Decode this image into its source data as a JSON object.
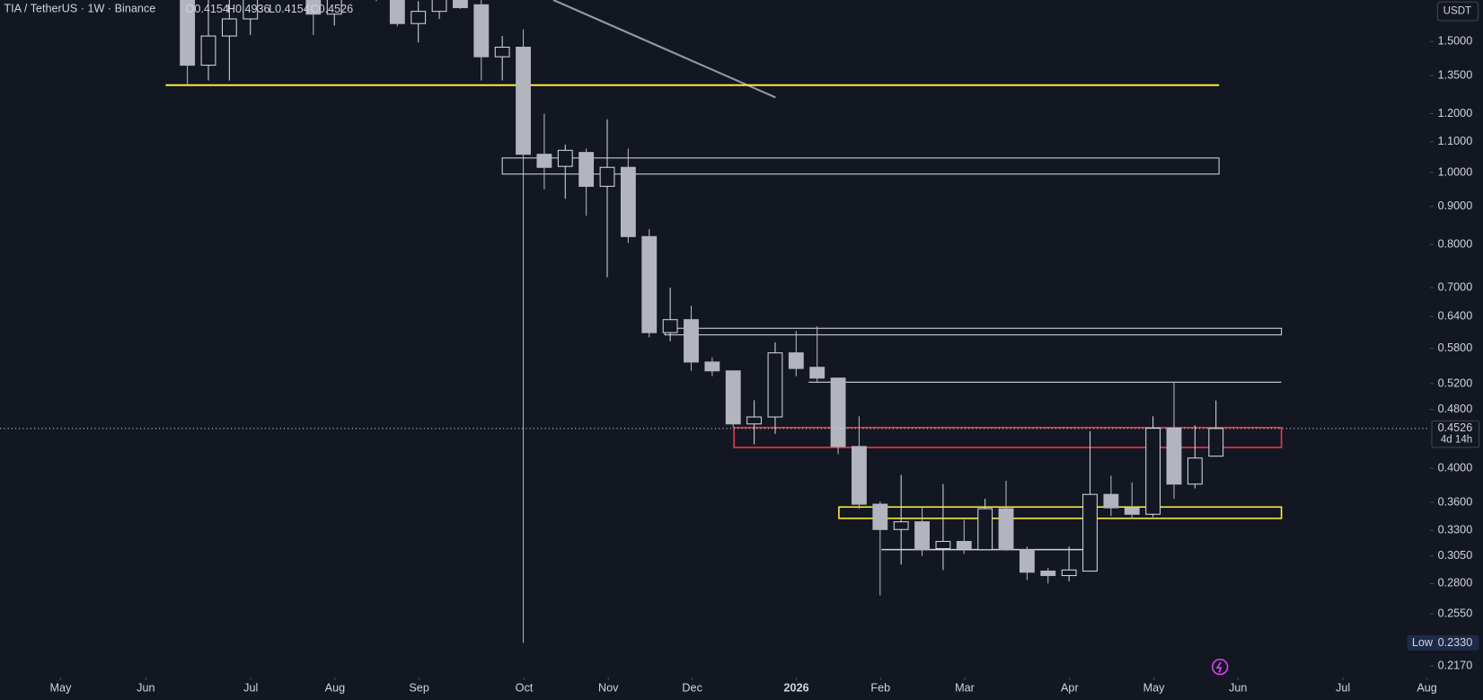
{
  "chart_data": {
    "type": "candlestick",
    "title": "TIA / TetherUS · 1W · Binance",
    "ohlc_labels": [
      "O0.4154",
      "H0.4936",
      "L0.4154",
      "C0.4526"
    ],
    "currency": "USDT",
    "last_price_label": "0.4526",
    "countdown": "4d 14h",
    "low_label": "Low",
    "low_value_label": "0.2330",
    "up_color": "#d1d4dc",
    "down_color": "#b2b5be",
    "log_scale": true,
    "categories": [
      null,
      null,
      null,
      null,
      null,
      null,
      null,
      null,
      null,
      null,
      null,
      null,
      null,
      null,
      null,
      null,
      null,
      null,
      null,
      null,
      null,
      null,
      null,
      null,
      null,
      null,
      null,
      null,
      null,
      null,
      null,
      null,
      null,
      null,
      null,
      null,
      null,
      null,
      null,
      null,
      null,
      null,
      null,
      null,
      null,
      null,
      null,
      null,
      null,
      null
    ],
    "open": [
      1.81,
      1.394,
      1.526,
      1.609,
      1.8,
      1.85,
      1.75,
      1.633,
      1.72,
      1.78,
      1.76,
      1.586,
      1.647,
      1.75,
      1.681,
      1.431,
      1.474,
      1.058,
      1.019,
      1.064,
      0.958,
      1.016,
      0.82,
      0.609,
      0.634,
      0.556,
      0.541,
      0.459,
      0.469,
      0.572,
      0.547,
      0.529,
      0.428,
      0.358,
      0.331,
      0.339,
      0.312,
      0.319,
      0.311,
      0.353,
      0.311,
      0.291,
      0.287,
      0.291,
      0.369,
      0.354,
      0.347,
      0.453,
      0.381,
      0.4154
    ],
    "high": [
      1.92,
      1.757,
      1.706,
      1.85,
      1.95,
      1.98,
      1.8,
      1.8,
      1.85,
      1.9,
      1.82,
      1.7,
      1.8,
      1.8,
      1.706,
      1.526,
      1.558,
      1.2,
      1.09,
      1.077,
      1.179,
      1.077,
      0.839,
      0.7,
      0.662,
      0.564,
      0.541,
      0.494,
      0.591,
      0.612,
      0.621,
      0.529,
      0.47,
      0.361,
      0.392,
      0.356,
      0.381,
      0.341,
      0.364,
      0.385,
      0.314,
      0.294,
      0.314,
      0.449,
      0.391,
      0.383,
      0.47,
      0.523,
      0.457,
      0.4936
    ],
    "low": [
      1.311,
      1.33,
      1.33,
      1.531,
      1.74,
      1.75,
      1.531,
      1.576,
      1.71,
      1.7,
      1.573,
      1.496,
      1.609,
      1.66,
      1.33,
      1.33,
      0.233,
      0.949,
      0.922,
      0.875,
      0.723,
      0.804,
      0.6,
      0.593,
      0.541,
      0.532,
      0.454,
      0.431,
      0.445,
      0.532,
      0.523,
      0.418,
      0.353,
      0.27,
      0.297,
      0.305,
      0.292,
      0.307,
      0.311,
      0.31,
      0.283,
      0.28,
      0.282,
      0.291,
      0.345,
      0.342,
      0.344,
      0.364,
      0.376,
      0.4154
    ],
    "close": [
      1.394,
      1.526,
      1.609,
      1.75,
      1.85,
      1.78,
      1.633,
      1.72,
      1.78,
      1.74,
      1.586,
      1.647,
      1.72,
      1.666,
      1.431,
      1.474,
      1.058,
      1.016,
      1.071,
      0.958,
      1.016,
      0.82,
      0.609,
      0.634,
      0.556,
      0.541,
      0.459,
      0.469,
      0.572,
      0.545,
      0.529,
      0.428,
      0.358,
      0.331,
      0.339,
      0.311,
      0.319,
      0.312,
      0.353,
      0.311,
      0.29,
      0.287,
      0.292,
      0.369,
      0.354,
      0.347,
      0.453,
      0.381,
      0.413,
      0.4526
    ],
    "ylim": [
      0.207,
      1.706
    ],
    "yticks": [
      {
        "value": 1.5,
        "label": "1.5000"
      },
      {
        "value": 1.35,
        "label": "1.3500"
      },
      {
        "value": 1.2,
        "label": "1.2000"
      },
      {
        "value": 1.1,
        "label": "1.1000"
      },
      {
        "value": 1.0,
        "label": "1.0000"
      },
      {
        "value": 0.9,
        "label": "0.9000"
      },
      {
        "value": 0.8,
        "label": "0.8000"
      },
      {
        "value": 0.7,
        "label": "0.7000"
      },
      {
        "value": 0.64,
        "label": "0.6400"
      },
      {
        "value": 0.58,
        "label": "0.5800"
      },
      {
        "value": 0.52,
        "label": "0.5200"
      },
      {
        "value": 0.48,
        "label": "0.4800"
      },
      {
        "value": 0.4,
        "label": "0.4000"
      },
      {
        "value": 0.36,
        "label": "0.3600"
      },
      {
        "value": 0.33,
        "label": "0.3300"
      },
      {
        "value": 0.305,
        "label": "0.3050"
      },
      {
        "value": 0.28,
        "label": "0.2800"
      },
      {
        "value": 0.255,
        "label": "0.2550"
      },
      {
        "value": 0.217,
        "label": "0.2170"
      }
    ],
    "xlim": [
      -8.92,
      59.1
    ],
    "xticks": [
      {
        "value": -6.04,
        "label": "May"
      },
      {
        "value": -1.98,
        "label": "Jun"
      },
      {
        "value": 3.02,
        "label": "Jul"
      },
      {
        "value": 7.03,
        "label": "Aug"
      },
      {
        "value": 11.04,
        "label": "Sep"
      },
      {
        "value": 16.04,
        "label": "Oct"
      },
      {
        "value": 20.05,
        "label": "Nov"
      },
      {
        "value": 24.05,
        "label": "Dec"
      },
      {
        "value": 29.01,
        "label": "2026"
      },
      {
        "value": 33.02,
        "label": "Feb"
      },
      {
        "value": 37.03,
        "label": "Mar"
      },
      {
        "value": 42.03,
        "label": "Apr"
      },
      {
        "value": 46.04,
        "label": "May"
      },
      {
        "value": 50.05,
        "label": "Jun"
      },
      {
        "value": 55.05,
        "label": "Jul"
      },
      {
        "value": 59.05,
        "label": "Aug"
      }
    ]
  }
}
